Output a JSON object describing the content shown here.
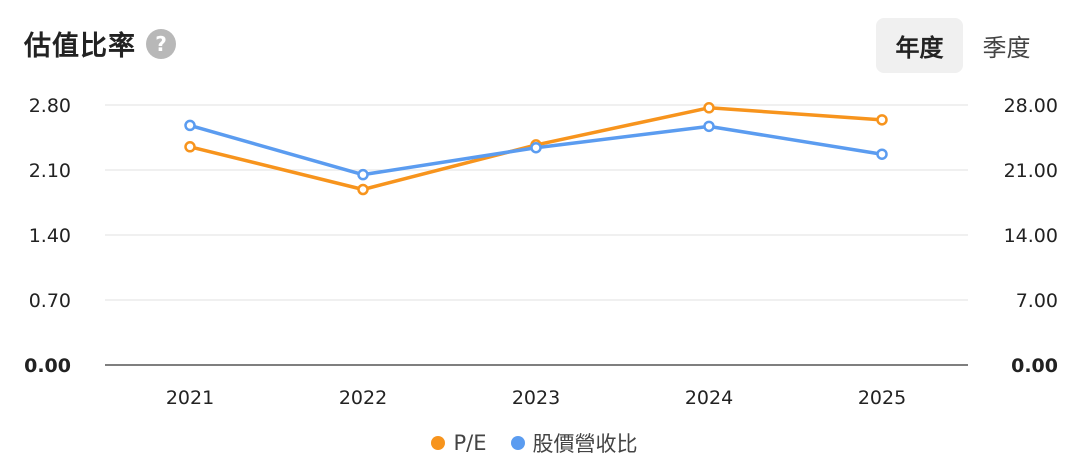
{
  "header": {
    "title": "估值比率",
    "help_glyph": "?"
  },
  "tabs": [
    {
      "label": "年度",
      "active": true
    },
    {
      "label": "季度",
      "active": false
    }
  ],
  "colors": {
    "pe": "#f7941d",
    "ps": "#5b9cf0",
    "grid": "#ececec",
    "axis": "#555555"
  },
  "chart_data": {
    "type": "line",
    "categories": [
      "2021",
      "2022",
      "2023",
      "2024",
      "2025"
    ],
    "series": [
      {
        "name": "P/E",
        "axis": "left",
        "values": [
          2.35,
          1.89,
          2.37,
          2.77,
          2.64
        ]
      },
      {
        "name": "股價營收比",
        "axis": "right",
        "values": [
          25.8,
          20.5,
          23.4,
          25.7,
          22.7
        ]
      }
    ],
    "left_axis": {
      "ticks": [
        "0.00",
        "0.70",
        "1.40",
        "2.10",
        "2.80"
      ],
      "ylim": [
        0,
        2.8
      ]
    },
    "right_axis": {
      "ticks": [
        "0.00",
        "7.00",
        "14.00",
        "21.00",
        "28.00"
      ],
      "ylim": [
        0,
        28
      ]
    },
    "grid": true,
    "legend_position": "bottom-center"
  }
}
